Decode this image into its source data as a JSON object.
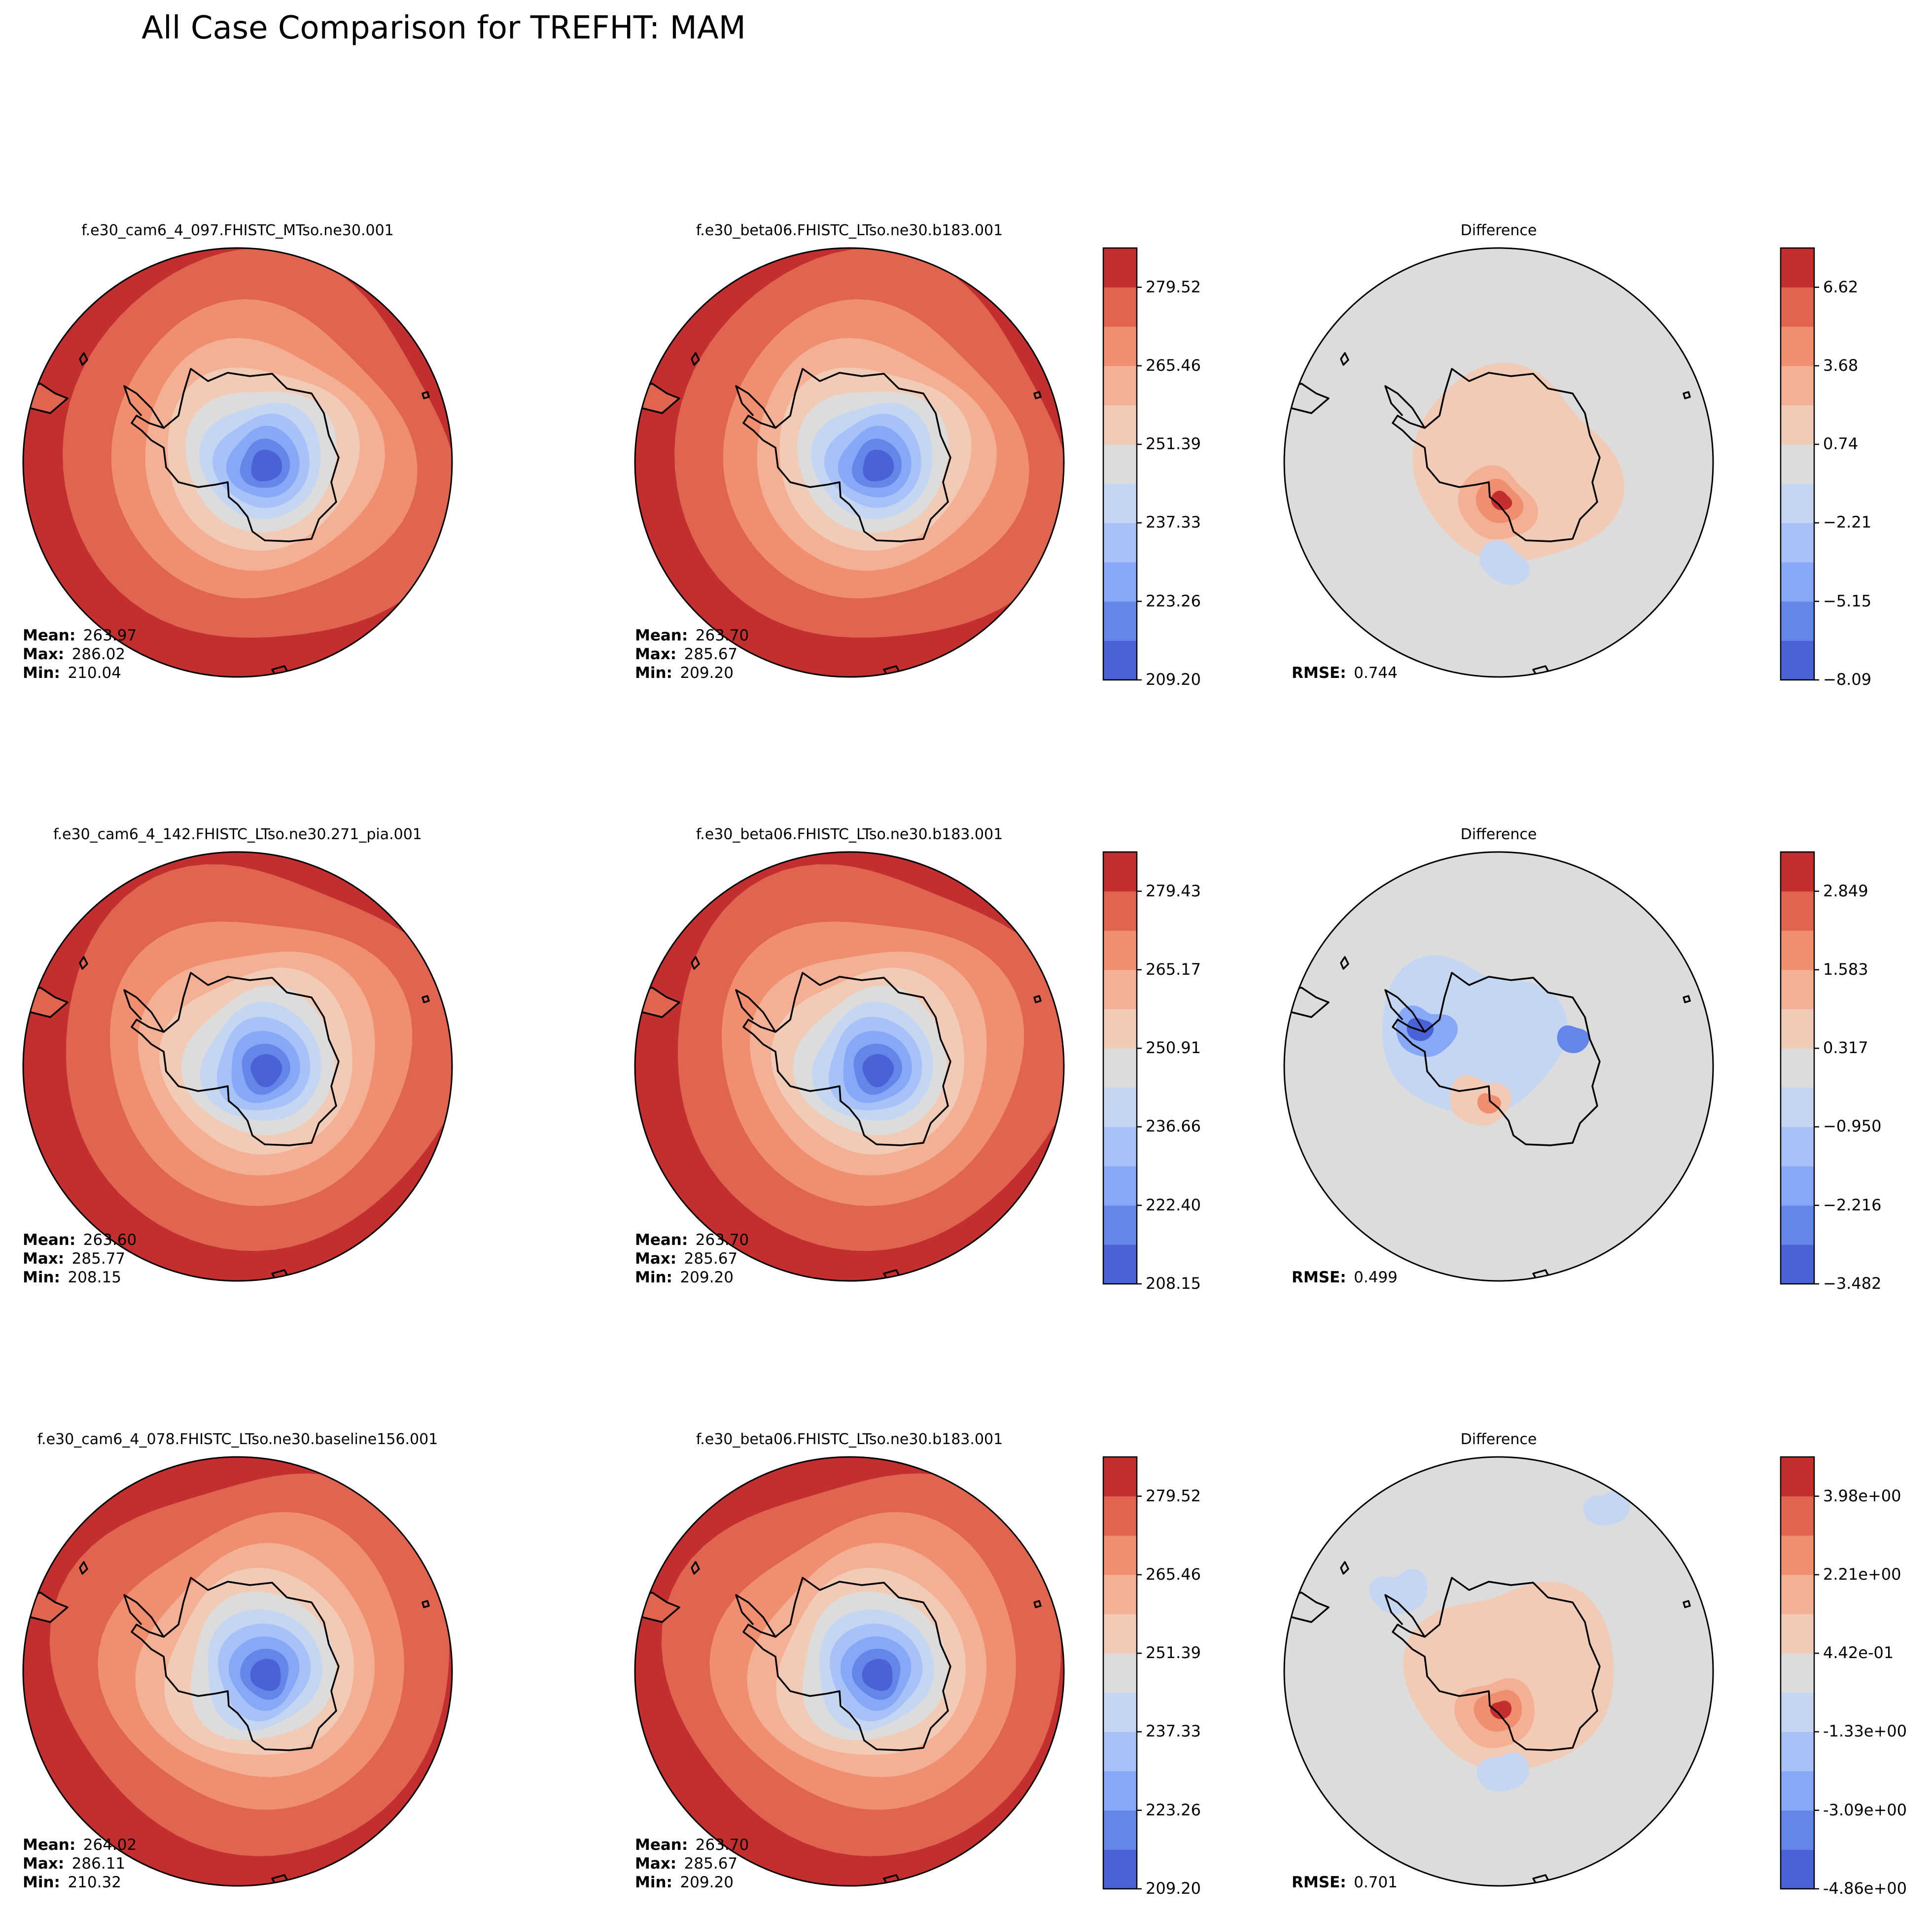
{
  "suptitle": "All Case Comparison for TREFHT: MAM",
  "colors": {
    "warm_levels": [
      "#dcdcdc",
      "#f2cbb7",
      "#f4b095",
      "#ef8f6f",
      "#df6550",
      "#c32f2f"
    ],
    "cool_levels": [
      "#dcdcdc",
      "#c5d6f2",
      "#a7c2f8",
      "#86a8f7",
      "#6586e9",
      "#4962d5"
    ],
    "coastline": "#000000",
    "frame": "#000000"
  },
  "rows": [
    {
      "test_title": "f.e30_cam6_4_097.FHISTC_MTso.ne30.001",
      "test_stats": {
        "mean_label": "Mean:",
        "mean": "263.97",
        "max_label": "Max:",
        "max": "286.02",
        "min_label": "Min:",
        "min": "210.04"
      },
      "ref_title": "f.e30_beta06.FHISTC_LTso.ne30.b183.001",
      "ref_stats": {
        "mean_label": "Mean:",
        "mean": "263.70",
        "max_label": "Max:",
        "max": "285.67",
        "min_label": "Min:",
        "min": "209.20"
      },
      "field_cbar_ticks": [
        "279.52",
        "265.46",
        "251.39",
        "237.33",
        "223.26",
        "209.20"
      ],
      "diff_title": "Difference",
      "rmse_label": "RMSE:",
      "rmse": "0.744",
      "diff_cbar_ticks": [
        "6.62",
        "3.68",
        "0.74",
        "−2.21",
        "−5.15",
        "−8.09"
      ]
    },
    {
      "test_title": "f.e30_cam6_4_142.FHISTC_LTso.ne30.271_pia.001",
      "test_stats": {
        "mean_label": "Mean:",
        "mean": "263.60",
        "max_label": "Max:",
        "max": "285.77",
        "min_label": "Min:",
        "min": "208.15"
      },
      "ref_title": "f.e30_beta06.FHISTC_LTso.ne30.b183.001",
      "ref_stats": {
        "mean_label": "Mean:",
        "mean": "263.70",
        "max_label": "Max:",
        "max": "285.67",
        "min_label": "Min:",
        "min": "209.20"
      },
      "field_cbar_ticks": [
        "279.43",
        "265.17",
        "250.91",
        "236.66",
        "222.40",
        "208.15"
      ],
      "diff_title": "Difference",
      "rmse_label": "RMSE:",
      "rmse": "0.499",
      "diff_cbar_ticks": [
        "2.849",
        "1.583",
        "0.317",
        "−0.950",
        "−2.216",
        "−3.482"
      ]
    },
    {
      "test_title": "f.e30_cam6_4_078.FHISTC_LTso.ne30.baseline156.001",
      "test_stats": {
        "mean_label": "Mean:",
        "mean": "264.02",
        "max_label": "Max:",
        "max": "286.11",
        "min_label": "Min:",
        "min": "210.32"
      },
      "ref_title": "f.e30_beta06.FHISTC_LTso.ne30.b183.001",
      "ref_stats": {
        "mean_label": "Mean:",
        "mean": "263.70",
        "max_label": "Max:",
        "max": "285.67",
        "min_label": "Min:",
        "min": "209.20"
      },
      "field_cbar_ticks": [
        "279.52",
        "265.46",
        "251.39",
        "237.33",
        "223.26",
        "209.20"
      ],
      "diff_title": "Difference",
      "rmse_label": "RMSE:",
      "rmse": "0.701",
      "diff_cbar_ticks": [
        "3.98e+00",
        "2.21e+00",
        "4.42e-01",
        "-1.33e+00",
        "-3.09e+00",
        "-4.86e+00"
      ]
    }
  ],
  "chart_data": {
    "type": "heatmap",
    "title": "All Case Comparison for TREFHT: MAM",
    "projection": "south-polar-stereographic",
    "colormap": "coolwarm",
    "n_levels": 11,
    "panels": [
      {
        "row": 0,
        "kind": "test",
        "title": "f.e30_cam6_4_097.FHISTC_MTso.ne30.001",
        "mean": 263.97,
        "max": 286.02,
        "min": 210.04
      },
      {
        "row": 0,
        "kind": "reference",
        "title": "f.e30_beta06.FHISTC_LTso.ne30.b183.001",
        "mean": 263.7,
        "max": 285.67,
        "min": 209.2
      },
      {
        "row": 0,
        "kind": "difference",
        "title": "Difference",
        "rmse": 0.744
      },
      {
        "row": 1,
        "kind": "test",
        "title": "f.e30_cam6_4_142.FHISTC_LTso.ne30.271_pia.001",
        "mean": 263.6,
        "max": 285.77,
        "min": 208.15
      },
      {
        "row": 1,
        "kind": "reference",
        "title": "f.e30_beta06.FHISTC_LTso.ne30.b183.001",
        "mean": 263.7,
        "max": 285.67,
        "min": 209.2
      },
      {
        "row": 1,
        "kind": "difference",
        "title": "Difference",
        "rmse": 0.499
      },
      {
        "row": 2,
        "kind": "test",
        "title": "f.e30_cam6_4_078.FHISTC_LTso.ne30.baseline156.001",
        "mean": 264.02,
        "max": 286.11,
        "min": 210.32
      },
      {
        "row": 2,
        "kind": "reference",
        "title": "f.e30_beta06.FHISTC_LTso.ne30.b183.001",
        "mean": 263.7,
        "max": 285.67,
        "min": 209.2
      },
      {
        "row": 2,
        "kind": "difference",
        "title": "Difference",
        "rmse": 0.701
      }
    ],
    "colorbars": [
      {
        "row": 0,
        "kind": "field",
        "range": [
          209.2,
          286.02
        ],
        "ticks": [
          209.2,
          223.26,
          237.33,
          251.39,
          265.46,
          279.52
        ]
      },
      {
        "row": 0,
        "kind": "difference",
        "range": [
          -8.09,
          8.09
        ],
        "ticks": [
          -8.09,
          -5.15,
          -2.21,
          0.74,
          3.68,
          6.62
        ]
      },
      {
        "row": 1,
        "kind": "field",
        "range": [
          208.15,
          285.77
        ],
        "ticks": [
          208.15,
          222.4,
          236.66,
          250.91,
          265.17,
          279.43
        ]
      },
      {
        "row": 1,
        "kind": "difference",
        "range": [
          -3.482,
          3.482
        ],
        "ticks": [
          -3.482,
          -2.216,
          -0.95,
          0.317,
          1.583,
          2.849
        ]
      },
      {
        "row": 2,
        "kind": "field",
        "range": [
          209.2,
          286.11
        ],
        "ticks": [
          209.2,
          223.26,
          237.33,
          251.39,
          265.46,
          279.52
        ]
      },
      {
        "row": 2,
        "kind": "difference",
        "range": [
          -4.86,
          4.86
        ],
        "ticks": [
          -4.86,
          -3.09,
          -1.33,
          0.442,
          2.21,
          3.98
        ]
      }
    ]
  }
}
